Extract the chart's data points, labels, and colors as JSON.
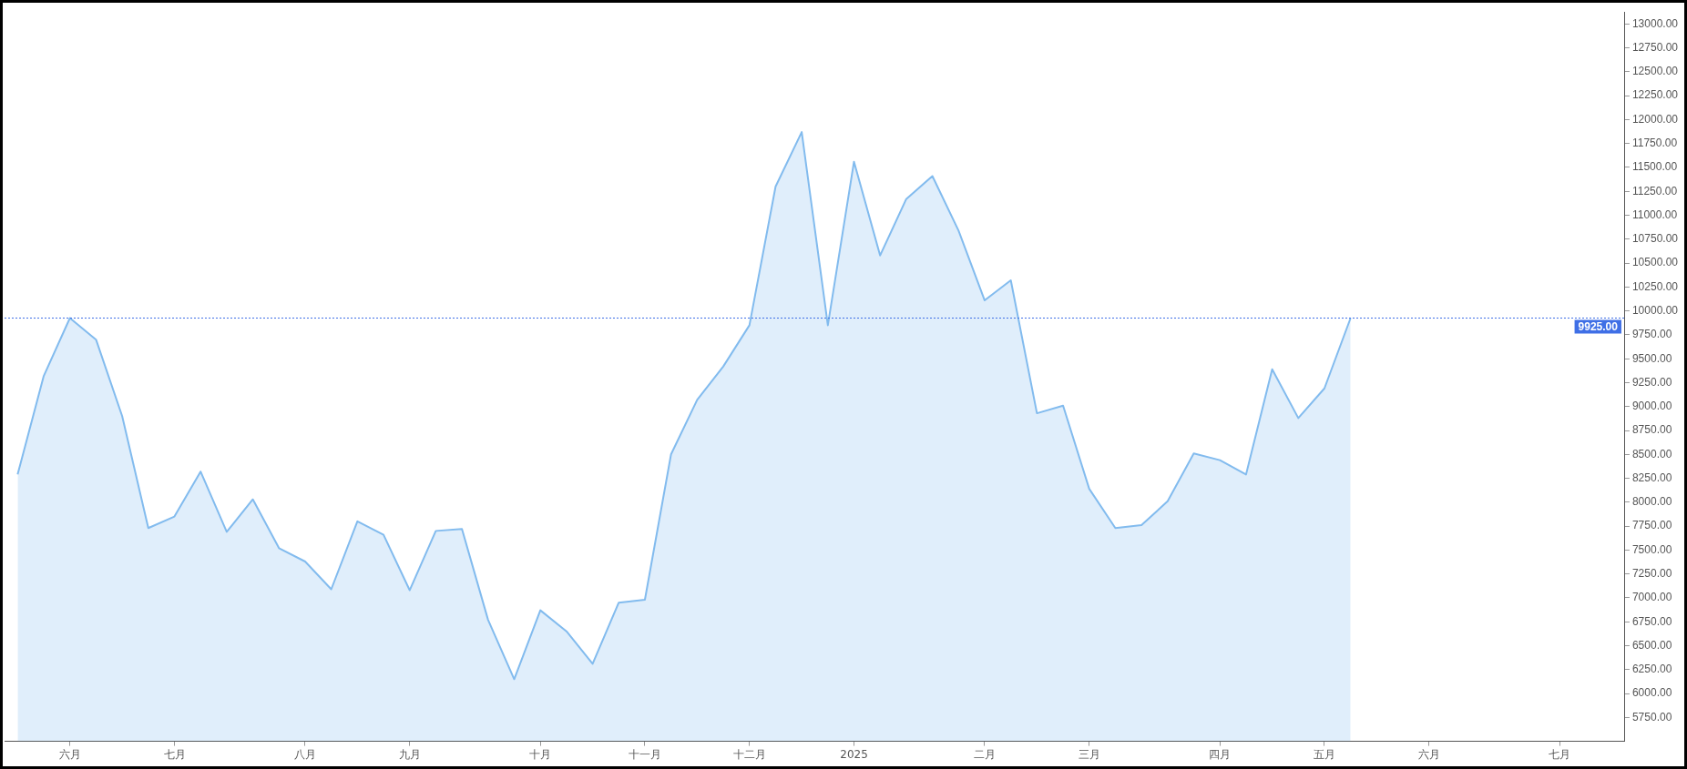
{
  "chart_data": {
    "type": "area",
    "categories": [
      null,
      null,
      "六月",
      null,
      null,
      null,
      "七月",
      null,
      null,
      null,
      null,
      "八月",
      null,
      null,
      null,
      "九月",
      null,
      null,
      null,
      null,
      "十月",
      null,
      null,
      null,
      "十一月",
      null,
      null,
      null,
      "十二月",
      null,
      null,
      null,
      "2025",
      null,
      null,
      null,
      null,
      "二月",
      null,
      null,
      null,
      "三月",
      null,
      null,
      null,
      null,
      "四月",
      null,
      null,
      null,
      "五月",
      null,
      null,
      null,
      "六月",
      null,
      null,
      null,
      null,
      "七月",
      null,
      null
    ],
    "series": [
      {
        "color": "#82bbee",
        "values": [
          8290,
          9320,
          9925,
          9700,
          8900,
          7730,
          7850,
          8320,
          7690,
          8030,
          7520,
          7380,
          7090,
          7800,
          7660,
          7080,
          7700,
          7720,
          6770,
          6150,
          6870,
          6650,
          6310,
          6950,
          6980,
          8500,
          9070,
          9420,
          9850,
          11300,
          11870,
          9850,
          11560,
          10580,
          11170,
          11410,
          10840,
          10110,
          10320,
          8930,
          9010,
          8140,
          7730,
          7760,
          8010,
          8510,
          8440,
          8290,
          9390,
          8880,
          9190,
          9925,
          null,
          null,
          null,
          null,
          null,
          null,
          null,
          null,
          null,
          null
        ]
      }
    ],
    "ylim": [
      5500,
      13125
    ],
    "yticks": [
      {
        "value": 5750,
        "label": "5750.00"
      },
      {
        "value": 6000,
        "label": "6000.00"
      },
      {
        "value": 6250,
        "label": "6250.00"
      },
      {
        "value": 6500,
        "label": "6500.00"
      },
      {
        "value": 6750,
        "label": "6750.00"
      },
      {
        "value": 7000,
        "label": "7000.00"
      },
      {
        "value": 7250,
        "label": "7250.00"
      },
      {
        "value": 7500,
        "label": "7500.00"
      },
      {
        "value": 7750,
        "label": "7750.00"
      },
      {
        "value": 8000,
        "label": "8000.00"
      },
      {
        "value": 8250,
        "label": "8250.00"
      },
      {
        "value": 8500,
        "label": "8500.00"
      },
      {
        "value": 8750,
        "label": "8750.00"
      },
      {
        "value": 9000,
        "label": "9000.00"
      },
      {
        "value": 9250,
        "label": "9250.00"
      },
      {
        "value": 9500,
        "label": "9500.00"
      },
      {
        "value": 9750,
        "label": "9750.00"
      },
      {
        "value": 10000,
        "label": "10000.00"
      },
      {
        "value": 10250,
        "label": "10250.00"
      },
      {
        "value": 10500,
        "label": "10500.00"
      },
      {
        "value": 10750,
        "label": "10750.00"
      },
      {
        "value": 11000,
        "label": "11000.00"
      },
      {
        "value": 11250,
        "label": "11250.00"
      },
      {
        "value": 11500,
        "label": "11500.00"
      },
      {
        "value": 11750,
        "label": "11750.00"
      },
      {
        "value": 12000,
        "label": "12000.00"
      },
      {
        "value": 12250,
        "label": "12250.00"
      },
      {
        "value": 12500,
        "label": "12500.00"
      },
      {
        "value": 12750,
        "label": "12750.00"
      },
      {
        "value": 13000,
        "label": "13000.00"
      }
    ],
    "ref_lines": [
      {
        "axis": "y",
        "value": 9925,
        "label": "9925.00",
        "color": "#3f6fe6",
        "line_style": "dotted"
      }
    ],
    "grid": false,
    "legend": false,
    "marker": "none",
    "line_style": "solid"
  }
}
